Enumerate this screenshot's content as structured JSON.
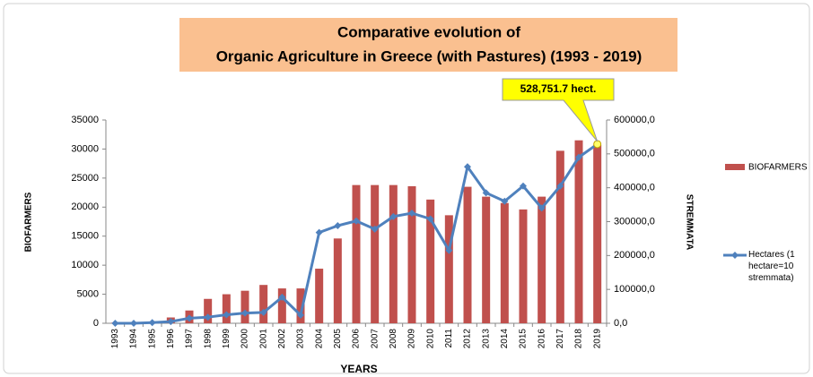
{
  "chart_data": {
    "type": "bar_line",
    "title": [
      "Comparative evolution of",
      "Organic Agriculture in Greece (with Pastures) (1993 - 2019)"
    ],
    "ylabel": "BIOFARMERS",
    "y2label": "STREMMATA",
    "xlabel": "YEARS",
    "annotation": "528,751.7 hect.",
    "categories": [
      "1993",
      "1994",
      "1995",
      "1996",
      "1997",
      "1998",
      "1999",
      "2000",
      "2001",
      "2002",
      "2003",
      "2004",
      "2005",
      "2006",
      "2007",
      "2008",
      "2009",
      "2010",
      "2011",
      "2012",
      "2013",
      "2014",
      "2015",
      "2016",
      "2017",
      "2018",
      "2019"
    ],
    "series": [
      {
        "name": "BIOFARMERS",
        "color": "#c0504d",
        "kind": "bar",
        "values": [
          100,
          150,
          250,
          1000,
          2200,
          4200,
          5000,
          5600,
          6600,
          6000,
          6000,
          9400,
          14600,
          23800,
          23800,
          23800,
          23600,
          21300,
          18600,
          23500,
          21800,
          20700,
          19600,
          21800,
          29700,
          31500,
          30700
        ]
      },
      {
        "name": "Hectares (1 hectare=10 stremmata)",
        "color": "#4f81bd",
        "kind": "line",
        "axis": "y2",
        "values": [
          0,
          0,
          2000,
          5000,
          15000,
          18000,
          25000,
          30000,
          32000,
          77000,
          24000,
          268000,
          288000,
          302000,
          278000,
          315000,
          325000,
          308000,
          215000,
          462000,
          385000,
          360000,
          405000,
          340000,
          405000,
          490000,
          528751.7
        ]
      }
    ],
    "ylim": [
      0,
      35000
    ],
    "yticks": [
      0,
      5000,
      10000,
      15000,
      20000,
      25000,
      30000,
      35000
    ],
    "y2lim": [
      0,
      600000
    ],
    "y2ticks": [
      {
        "value": 0,
        "label": "0,0"
      },
      {
        "value": 100000,
        "label": "100000,0"
      },
      {
        "value": 200000,
        "label": "200000,0"
      },
      {
        "value": 300000,
        "label": "300000,0"
      },
      {
        "value": 400000,
        "label": "400000,0"
      },
      {
        "value": 500000,
        "label": "500000,0"
      },
      {
        "value": 600000,
        "label": "600000,0"
      }
    ]
  }
}
